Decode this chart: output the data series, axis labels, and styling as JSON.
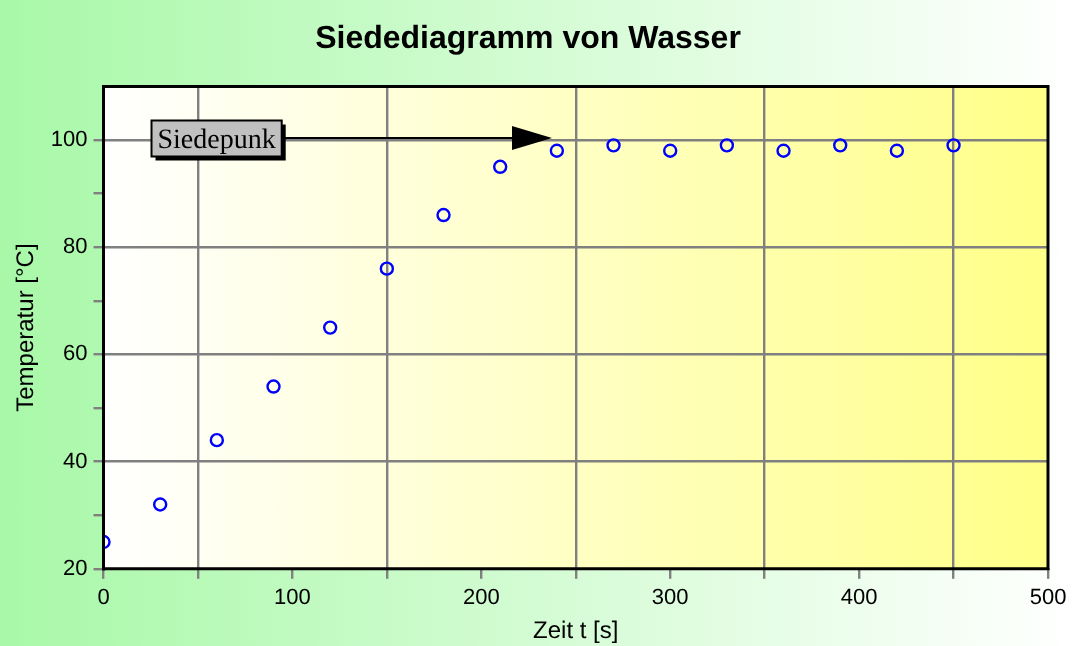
{
  "chart_data": {
    "type": "scatter",
    "title": "Siedediagramm von Wasser",
    "xlabel": "Zeit t [s]",
    "ylabel": "Temperatur [°C]",
    "x": [
      0,
      30,
      60,
      90,
      120,
      150,
      180,
      210,
      240,
      270,
      300,
      330,
      360,
      390,
      420,
      450
    ],
    "values": [
      25,
      32,
      44,
      54,
      65,
      76,
      86,
      95,
      98,
      99,
      98,
      99,
      98,
      99,
      98,
      99
    ],
    "color": "#0000ff",
    "marker": "circle",
    "xlim": [
      0,
      500
    ],
    "xticks": [
      0,
      {
        "value": 50,
        "label": null
      },
      100,
      {
        "value": 150,
        "label": null
      },
      200,
      {
        "value": 250,
        "label": null
      },
      300,
      {
        "value": 350,
        "label": null
      },
      400,
      {
        "value": 450,
        "label": null
      },
      500
    ],
    "ylim": [
      20,
      110
    ],
    "yticks": [
      20,
      {
        "value": 30,
        "label": null
      },
      40,
      {
        "value": 50,
        "label": null
      },
      60,
      {
        "value": 70,
        "label": null
      },
      80,
      {
        "value": 90,
        "label": null
      },
      100
    ],
    "grid": true,
    "legend": false,
    "annotations": [
      "Siedepunk"
    ]
  }
}
